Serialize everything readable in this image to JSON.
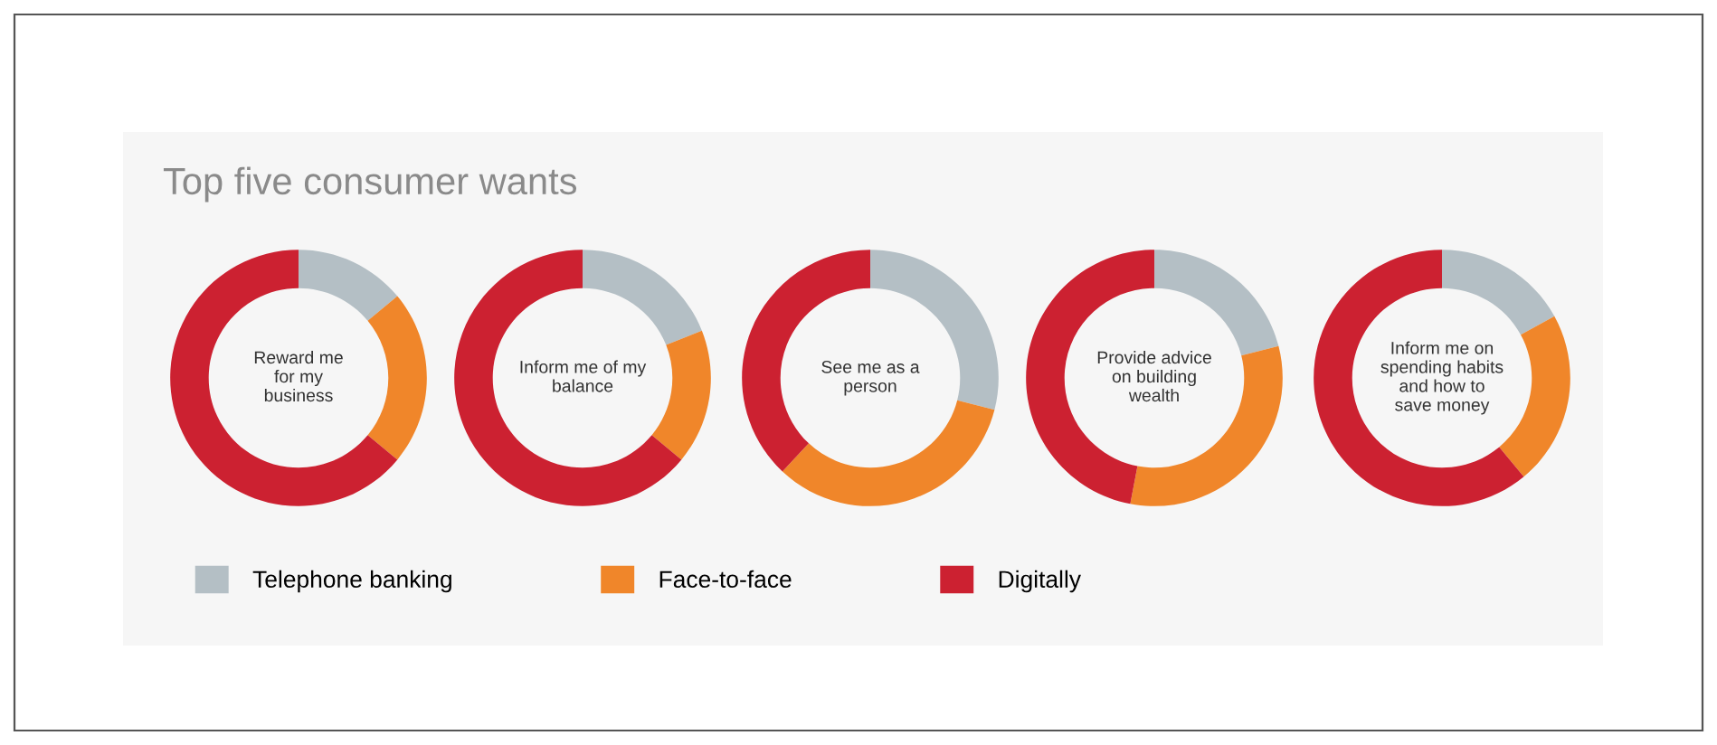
{
  "chart_data": [
    {
      "type": "donut",
      "title": "Top five consumer wants",
      "categories": [
        "Telephone banking",
        "Face-to-face",
        "Digitally"
      ],
      "values": [
        14,
        22,
        64
      ],
      "colors": [
        "#b4bfc5",
        "#f0862a",
        "#cc2131"
      ],
      "annotations": [
        "Reward me\nfor my\nbusiness"
      ],
      "legend": "bottom"
    },
    {
      "type": "donut",
      "categories": [
        null,
        null,
        null
      ],
      "values": [
        19,
        17,
        64
      ],
      "colors": [
        "#b4bfc5",
        "#f0862a",
        "#cc2131"
      ],
      "annotations": [
        "Inform me of my\nbalance"
      ]
    },
    {
      "type": "donut",
      "categories": [
        null,
        null,
        null
      ],
      "values": [
        29,
        33,
        38
      ],
      "colors": [
        "#b4bfc5",
        "#f0862a",
        "#cc2131"
      ],
      "annotations": [
        "See me as a\nperson"
      ]
    },
    {
      "type": "donut",
      "categories": [
        null,
        null,
        null
      ],
      "values": [
        21,
        32,
        47
      ],
      "colors": [
        "#b4bfc5",
        "#f0862a",
        "#cc2131"
      ],
      "annotations": [
        "Provide advice\non building\nwealth"
      ]
    },
    {
      "type": "donut",
      "categories": [
        null,
        null,
        null
      ],
      "values": [
        17,
        22,
        61
      ],
      "colors": [
        "#b4bfc5",
        "#f0862a",
        "#cc2131"
      ],
      "annotations": [
        "Inform me on\nspending habits\nand how to\nsave money"
      ]
    }
  ]
}
